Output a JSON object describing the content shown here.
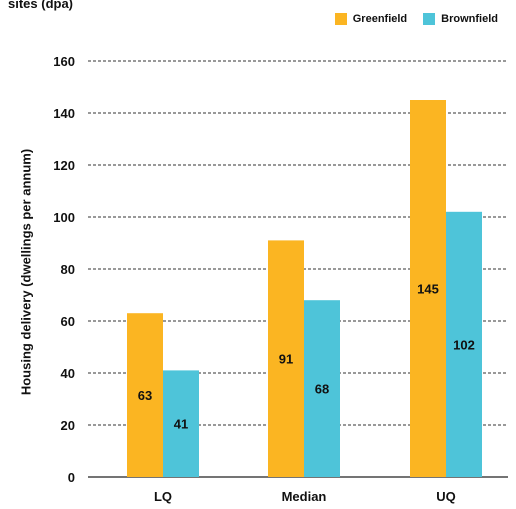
{
  "chart_data": {
    "type": "bar",
    "title_fragment": "sites (dpa)",
    "ylabel": "Housing delivery (dwellings per annum)",
    "categories": [
      "LQ",
      "Median",
      "UQ"
    ],
    "series": [
      {
        "name": "Greenfield",
        "color": "#fbb522",
        "values": [
          63,
          91,
          145
        ],
        "labels": [
          "63",
          "91",
          "145"
        ]
      },
      {
        "name": "Brownfield",
        "color": "#4ec4d9",
        "values": [
          41,
          68,
          102
        ],
        "labels": [
          "41",
          "68",
          "102"
        ]
      }
    ],
    "ylim": [
      0,
      160
    ],
    "yticks": [
      0,
      20,
      40,
      60,
      80,
      100,
      120,
      140,
      160
    ],
    "ytick_labels": [
      "0",
      "20",
      "40",
      "60",
      "80",
      "100",
      "120",
      "140",
      "160"
    ],
    "grid": "dashed",
    "legend": "top-right"
  }
}
